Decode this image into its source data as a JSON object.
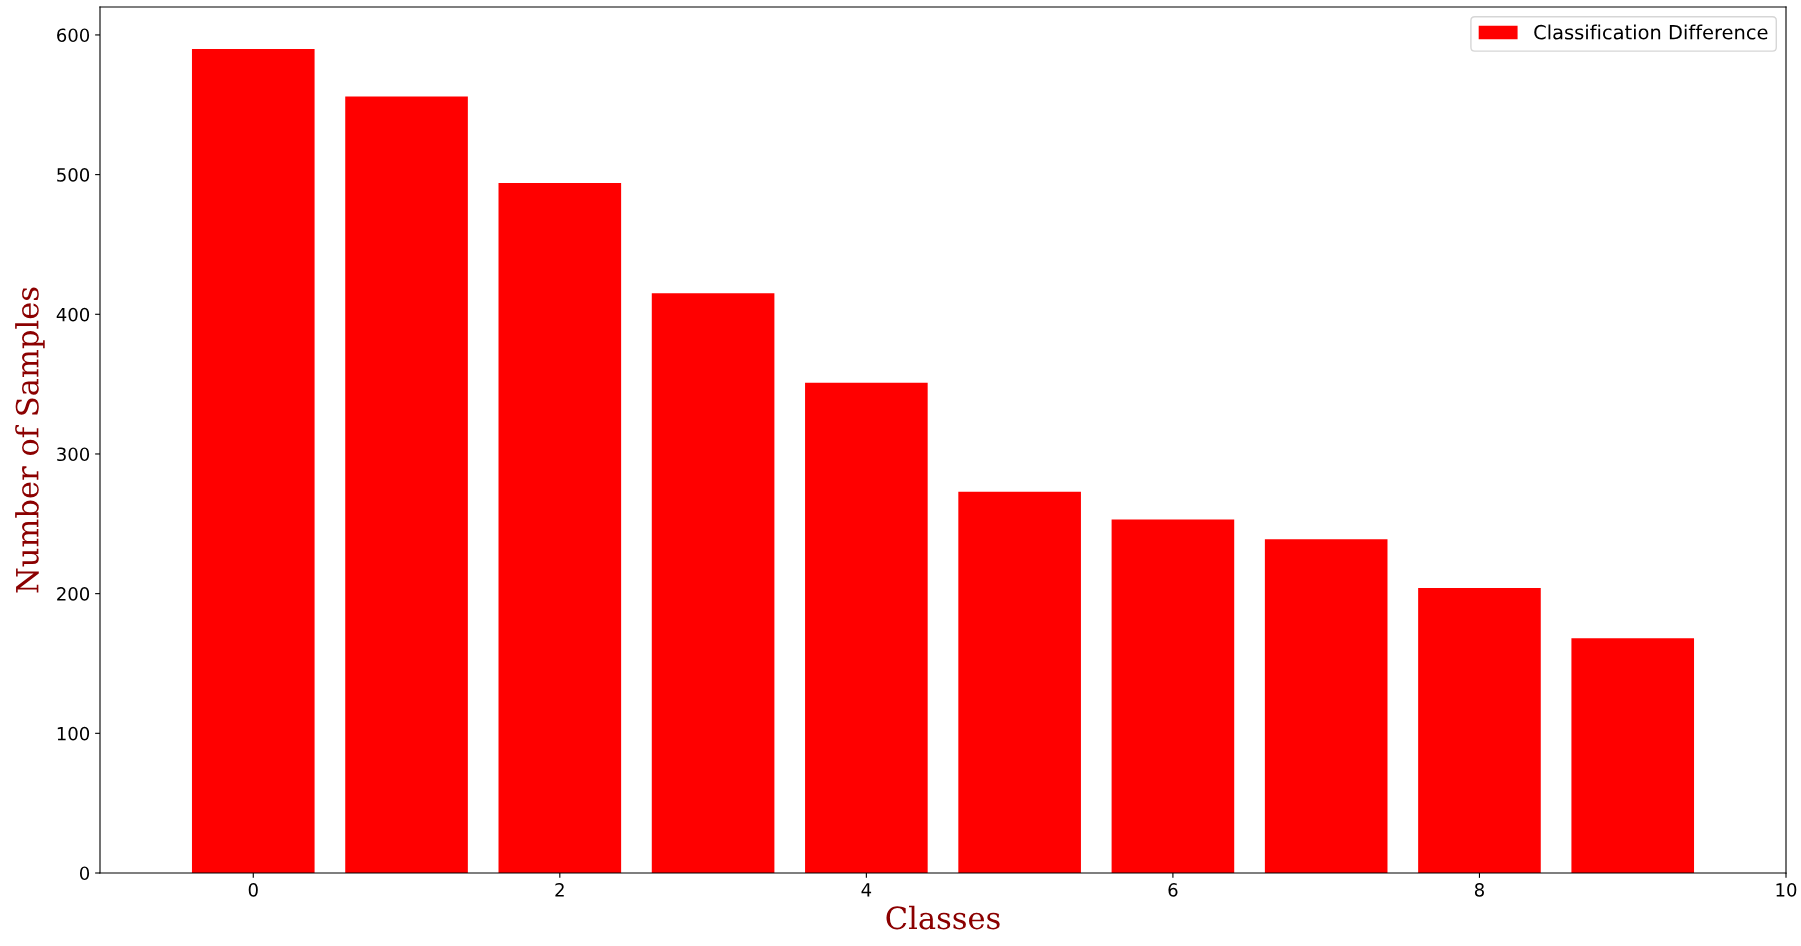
{
  "chart_data": {
    "type": "bar",
    "xlabel": "Classes",
    "ylabel": "Number of Samples",
    "x": [
      0,
      1,
      2,
      3,
      4,
      5,
      6,
      7,
      8,
      9
    ],
    "series": [
      {
        "name": "Classification Difference",
        "color": "#ff0000",
        "values": [
          590,
          556,
          494,
          415,
          351,
          273,
          253,
          239,
          204,
          168
        ]
      }
    ],
    "xlim": [
      -1,
      10
    ],
    "xticks": [
      0,
      2,
      4,
      6,
      8,
      10
    ],
    "ylim": [
      0,
      620
    ],
    "yticks": [
      0,
      100,
      200,
      300,
      400,
      500,
      600
    ],
    "grid": false,
    "legend": "top right"
  }
}
